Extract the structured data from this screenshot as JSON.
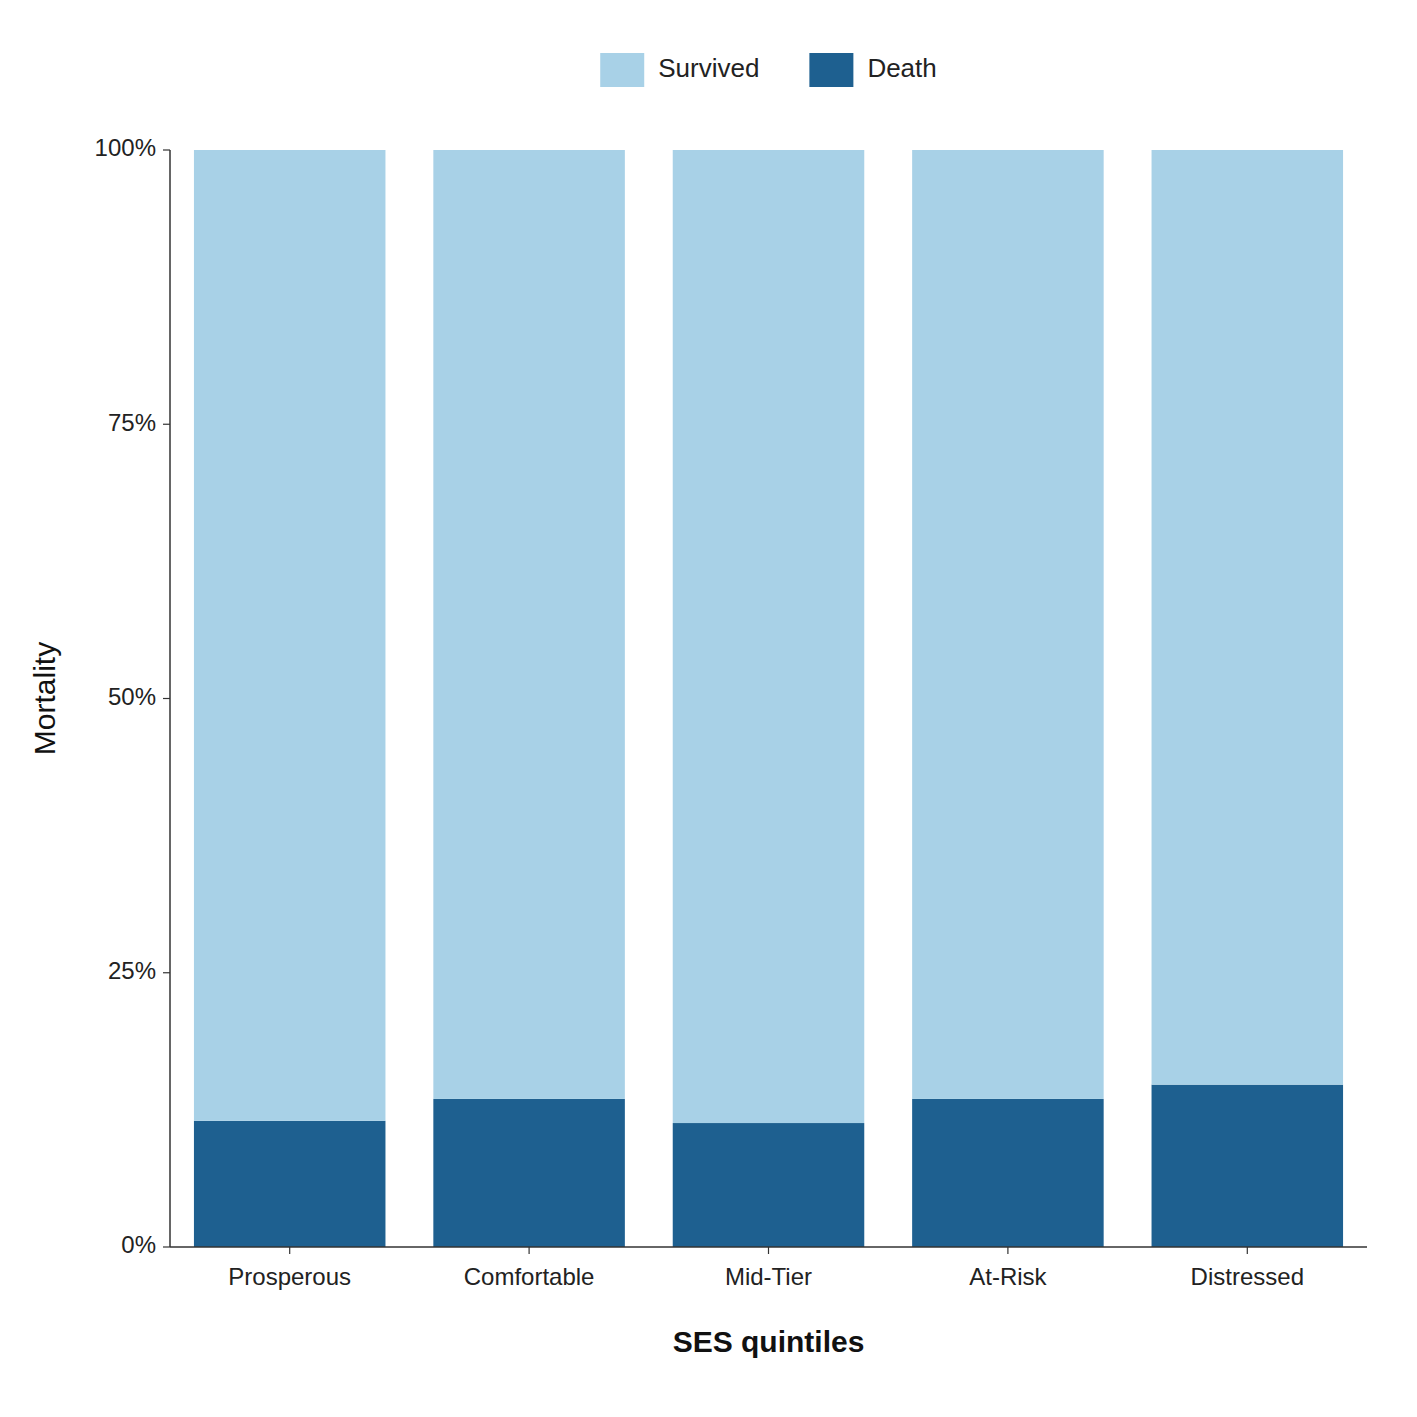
{
  "chart_data": {
    "type": "bar",
    "stacked": true,
    "categories": [
      "Prosperous",
      "Comfortable",
      "Mid-Tier",
      "At-Risk",
      "Distressed"
    ],
    "series": [
      {
        "name": "Death",
        "color": "#1e6090",
        "values": [
          0.115,
          0.135,
          0.113,
          0.135,
          0.148
        ]
      },
      {
        "name": "Survived",
        "color": "#a8d1e7",
        "values": [
          0.885,
          0.865,
          0.887,
          0.865,
          0.852
        ]
      }
    ],
    "xlabel": "SES quintiles",
    "ylabel": "Mortality",
    "ylim": [
      0,
      1
    ],
    "yticks": [
      {
        "value": 0.0,
        "label": "0%"
      },
      {
        "value": 0.25,
        "label": "25%"
      },
      {
        "value": 0.5,
        "label": "50%"
      },
      {
        "value": 0.75,
        "label": "75%"
      },
      {
        "value": 1.0,
        "label": "100%"
      }
    ],
    "grid": false,
    "legend": "top"
  }
}
